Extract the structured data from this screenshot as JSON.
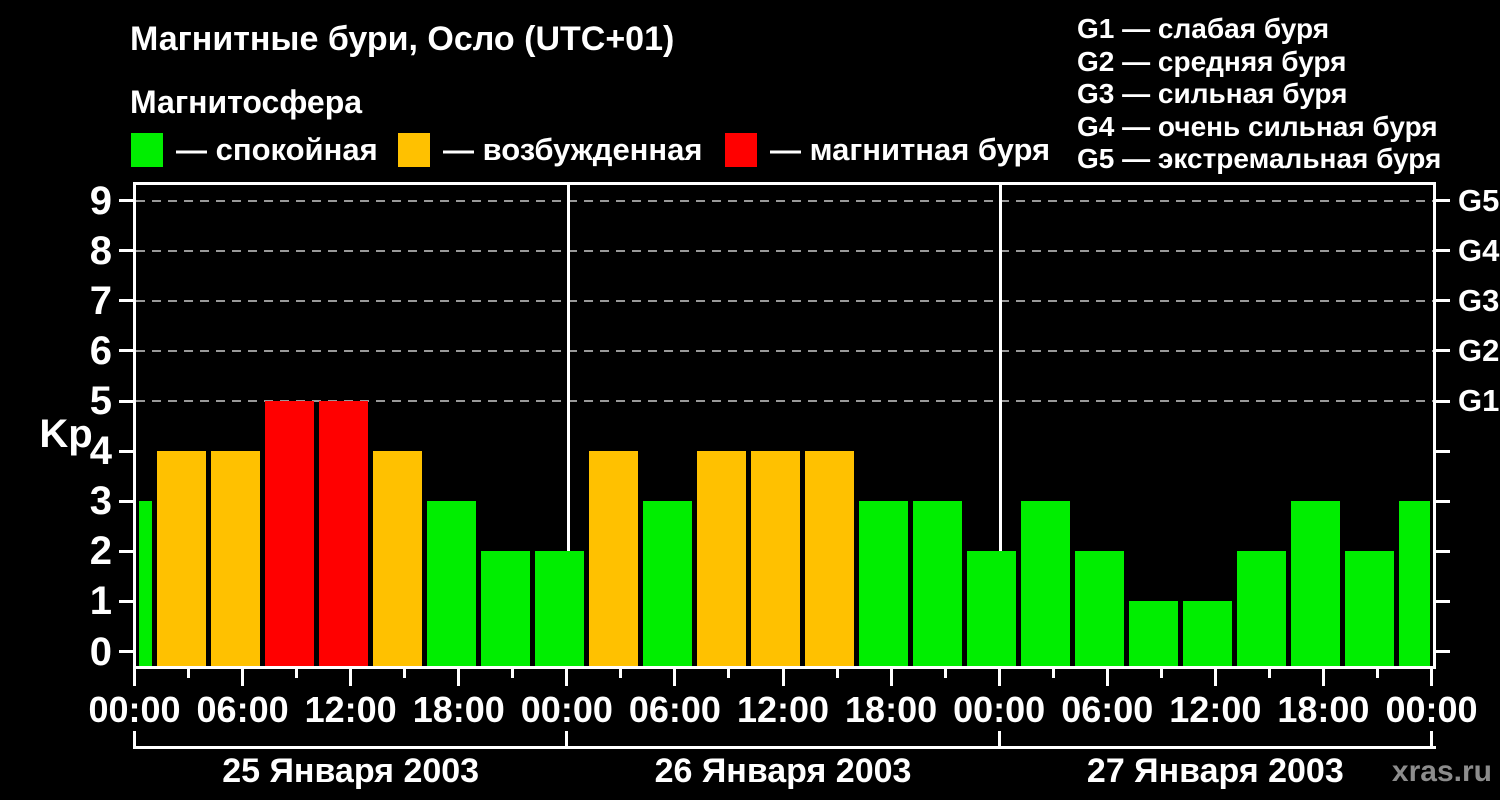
{
  "header": {
    "title": "Магнитные бури, Осло (UTC+01)",
    "subtitle": "Магнитосфера",
    "legend": [
      {
        "level": "quiet",
        "label": "— спокойная"
      },
      {
        "level": "active",
        "label": "— возбужденная"
      },
      {
        "level": "storm",
        "label": "— магнитная буря"
      }
    ],
    "g_legend": [
      "G1 — слабая буря",
      "G2 — средняя буря",
      "G3 — сильная буря",
      "G4 — очень сильная буря",
      "G5 — экстремальная буря"
    ]
  },
  "watermark": "xras.ru",
  "colors": {
    "background": "#000000",
    "text": "#ffffff",
    "axis": "#ffffff",
    "grid": "#999999",
    "watermark": "#8c8c8c",
    "quiet": "#00ee00",
    "active": "#ffc100",
    "storm": "#ff0000"
  },
  "chart_data": {
    "type": "bar",
    "title": "Магнитные бури, Осло (UTC+01)",
    "xlabel": "",
    "ylabel": "Kp",
    "ylim": [
      0,
      9.4
    ],
    "yticks": [
      0,
      1,
      2,
      3,
      4,
      5,
      6,
      7,
      8,
      9
    ],
    "grid_dashed_at_kp": [
      5,
      6,
      7,
      8,
      9
    ],
    "right_axis_labels": [
      {
        "kp": 5,
        "label": "G1"
      },
      {
        "kp": 6,
        "label": "G2"
      },
      {
        "kp": 7,
        "label": "G3"
      },
      {
        "kp": 8,
        "label": "G4"
      },
      {
        "kp": 9,
        "label": "G5"
      }
    ],
    "x_hours_total": 72,
    "x_tick_step_minor_h": 3,
    "x_tick_step_major_h": 6,
    "x_tick_labels_cycle": [
      "00:00",
      "06:00",
      "12:00",
      "18:00"
    ],
    "day_separators_h": [
      24,
      48
    ],
    "days": [
      {
        "label": "25 Января 2003",
        "start_h": 0,
        "end_h": 24
      },
      {
        "label": "26 Января 2003",
        "start_h": 24,
        "end_h": 48
      },
      {
        "label": "27 Января 2003",
        "start_h": 48,
        "end_h": 72
      }
    ],
    "bars": [
      {
        "h0": 0,
        "h1": 1,
        "kp": 3,
        "level": "quiet"
      },
      {
        "h0": 1,
        "h1": 4,
        "kp": 4,
        "level": "active"
      },
      {
        "h0": 4,
        "h1": 7,
        "kp": 4,
        "level": "active"
      },
      {
        "h0": 7,
        "h1": 10,
        "kp": 5,
        "level": "storm"
      },
      {
        "h0": 10,
        "h1": 13,
        "kp": 5,
        "level": "storm"
      },
      {
        "h0": 13,
        "h1": 16,
        "kp": 4,
        "level": "active"
      },
      {
        "h0": 16,
        "h1": 19,
        "kp": 3,
        "level": "quiet"
      },
      {
        "h0": 19,
        "h1": 22,
        "kp": 2,
        "level": "quiet"
      },
      {
        "h0": 22,
        "h1": 25,
        "kp": 2,
        "level": "quiet"
      },
      {
        "h0": 25,
        "h1": 28,
        "kp": 4,
        "level": "active"
      },
      {
        "h0": 28,
        "h1": 31,
        "kp": 3,
        "level": "quiet"
      },
      {
        "h0": 31,
        "h1": 34,
        "kp": 4,
        "level": "active"
      },
      {
        "h0": 34,
        "h1": 37,
        "kp": 4,
        "level": "active"
      },
      {
        "h0": 37,
        "h1": 40,
        "kp": 4,
        "level": "active"
      },
      {
        "h0": 40,
        "h1": 43,
        "kp": 3,
        "level": "quiet"
      },
      {
        "h0": 43,
        "h1": 46,
        "kp": 3,
        "level": "quiet"
      },
      {
        "h0": 46,
        "h1": 49,
        "kp": 2,
        "level": "quiet"
      },
      {
        "h0": 49,
        "h1": 52,
        "kp": 3,
        "level": "quiet"
      },
      {
        "h0": 52,
        "h1": 55,
        "kp": 2,
        "level": "quiet"
      },
      {
        "h0": 55,
        "h1": 58,
        "kp": 1,
        "level": "quiet"
      },
      {
        "h0": 58,
        "h1": 61,
        "kp": 1,
        "level": "quiet"
      },
      {
        "h0": 61,
        "h1": 64,
        "kp": 2,
        "level": "quiet"
      },
      {
        "h0": 64,
        "h1": 67,
        "kp": 3,
        "level": "quiet"
      },
      {
        "h0": 67,
        "h1": 70,
        "kp": 2,
        "level": "quiet"
      },
      {
        "h0": 70,
        "h1": 72,
        "kp": 3,
        "level": "quiet"
      }
    ],
    "legend_position": "top-left",
    "grid": "dashed horizontal at Kp 5-9 only"
  }
}
